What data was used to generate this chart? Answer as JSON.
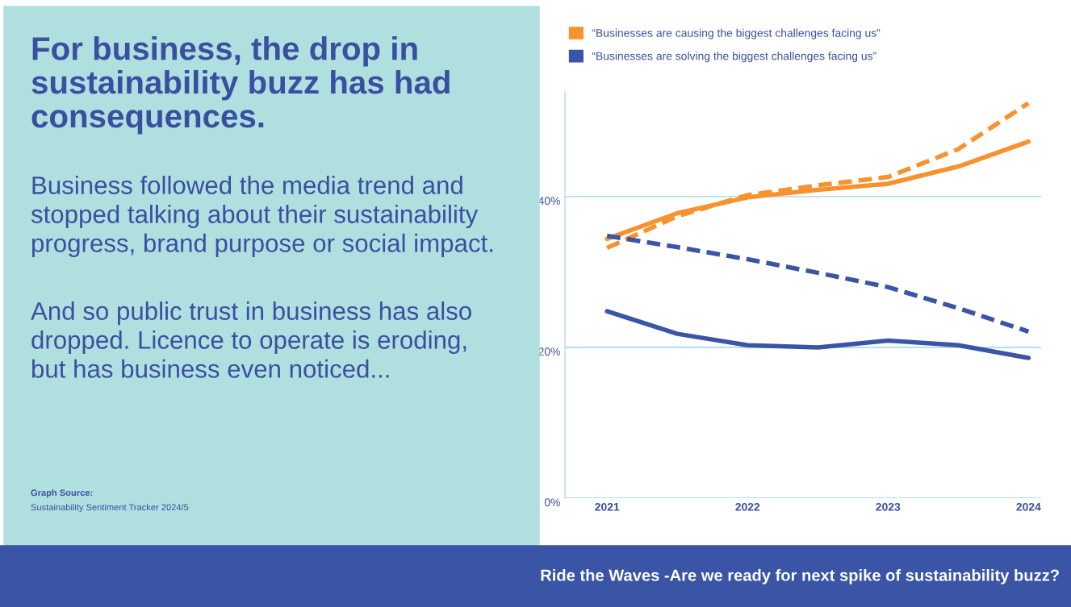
{
  "chart_data": {
    "type": "line",
    "title": "For business, the drop in\nsustainability buzz has had\nconsequences.",
    "annotations": [
      "Business followed the media trend and\nstopped talking about their sustainability\nprogress, brand purpose or social impact.",
      "And so public trust in business has also\ndropped. Licence to operate is eroding,\nbut has business even noticed...",
      "Graph Source:",
      "Sustainability Sentiment Tracker 2024/5",
      "Ride the Waves -Are we ready for next spike of sustainability buzz?"
    ],
    "x": [
      2021,
      2021.5,
      2022,
      2022.5,
      2023,
      2023.5,
      2024
    ],
    "series": [
      {
        "name": "“Businesses are causing the biggest challenges facing us”",
        "color": "#f7922e",
        "line_style": "solid",
        "values": [
          34.4,
          37.8,
          39.9,
          40.9,
          41.7,
          44.0,
          47.3
        ]
      },
      {
        "name": "“Businesses are solving the biggest challenges facing us”",
        "color": "#3a55a6",
        "line_style": "solid",
        "values": [
          24.8,
          21.8,
          20.3,
          20.0,
          20.9,
          20.3,
          18.6
        ]
      },
      {
        "color": "#f7922e",
        "line_style": "dashed",
        "values": [
          33.2,
          37.4,
          40.2,
          41.5,
          42.6,
          46.3,
          52.4
        ]
      },
      {
        "color": "#3a55a6",
        "line_style": "dashed",
        "values": [
          34.8,
          33.3,
          31.7,
          29.9,
          28.0,
          25.2,
          22.1
        ]
      }
    ],
    "xlim": [
      2020.7,
      2024.09
    ],
    "xticks": [
      2021,
      2022,
      2023,
      2024
    ],
    "ylim": [
      0,
      54
    ],
    "yticks": [
      {
        "value": 0,
        "label": "0%"
      },
      {
        "value": 20,
        "label": "20%"
      },
      {
        "value": 40,
        "label": "40%"
      }
    ],
    "grid": "y",
    "legend": "top left"
  }
}
